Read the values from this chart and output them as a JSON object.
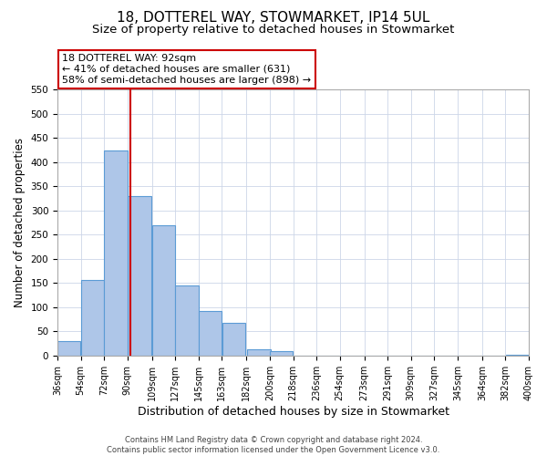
{
  "title": "18, DOTTEREL WAY, STOWMARKET, IP14 5UL",
  "subtitle": "Size of property relative to detached houses in Stowmarket",
  "xlabel": "Distribution of detached houses by size in Stowmarket",
  "ylabel": "Number of detached properties",
  "bar_left_edges": [
    36,
    54,
    72,
    90,
    109,
    127,
    145,
    163,
    182,
    200,
    218,
    236,
    254,
    273,
    291,
    309,
    327,
    345,
    364,
    382
  ],
  "bar_widths": [
    18,
    18,
    18,
    19,
    18,
    18,
    18,
    18,
    19,
    18,
    18,
    18,
    19,
    18,
    18,
    18,
    18,
    19,
    18,
    18
  ],
  "bar_heights": [
    30,
    157,
    425,
    330,
    270,
    145,
    92,
    67,
    13,
    9,
    0,
    0,
    0,
    0,
    0,
    0,
    0,
    0,
    0,
    2
  ],
  "tick_labels": [
    "36sqm",
    "54sqm",
    "72sqm",
    "90sqm",
    "109sqm",
    "127sqm",
    "145sqm",
    "163sqm",
    "182sqm",
    "200sqm",
    "218sqm",
    "236sqm",
    "254sqm",
    "273sqm",
    "291sqm",
    "309sqm",
    "327sqm",
    "345sqm",
    "364sqm",
    "382sqm",
    "400sqm"
  ],
  "tick_positions": [
    36,
    54,
    72,
    90,
    109,
    127,
    145,
    163,
    182,
    200,
    218,
    236,
    254,
    273,
    291,
    309,
    327,
    345,
    364,
    382,
    400
  ],
  "bar_color": "#aec6e8",
  "bar_edge_color": "#5b9bd5",
  "vline_x": 92,
  "vline_color": "#cc0000",
  "ylim": [
    0,
    550
  ],
  "xlim": [
    36,
    400
  ],
  "annotation_title": "18 DOTTEREL WAY: 92sqm",
  "annotation_line1": "← 41% of detached houses are smaller (631)",
  "annotation_line2": "58% of semi-detached houses are larger (898) →",
  "annotation_box_color": "#ffffff",
  "annotation_box_edge_color": "#cc0000",
  "footer1": "Contains HM Land Registry data © Crown copyright and database right 2024.",
  "footer2": "Contains public sector information licensed under the Open Government Licence v3.0.",
  "title_fontsize": 11,
  "subtitle_fontsize": 9.5,
  "xlabel_fontsize": 9,
  "ylabel_fontsize": 8.5,
  "tick_fontsize": 7,
  "annotation_fontsize": 8,
  "footer_fontsize": 6,
  "grid_color": "#ccd6e8",
  "background_color": "#ffffff"
}
